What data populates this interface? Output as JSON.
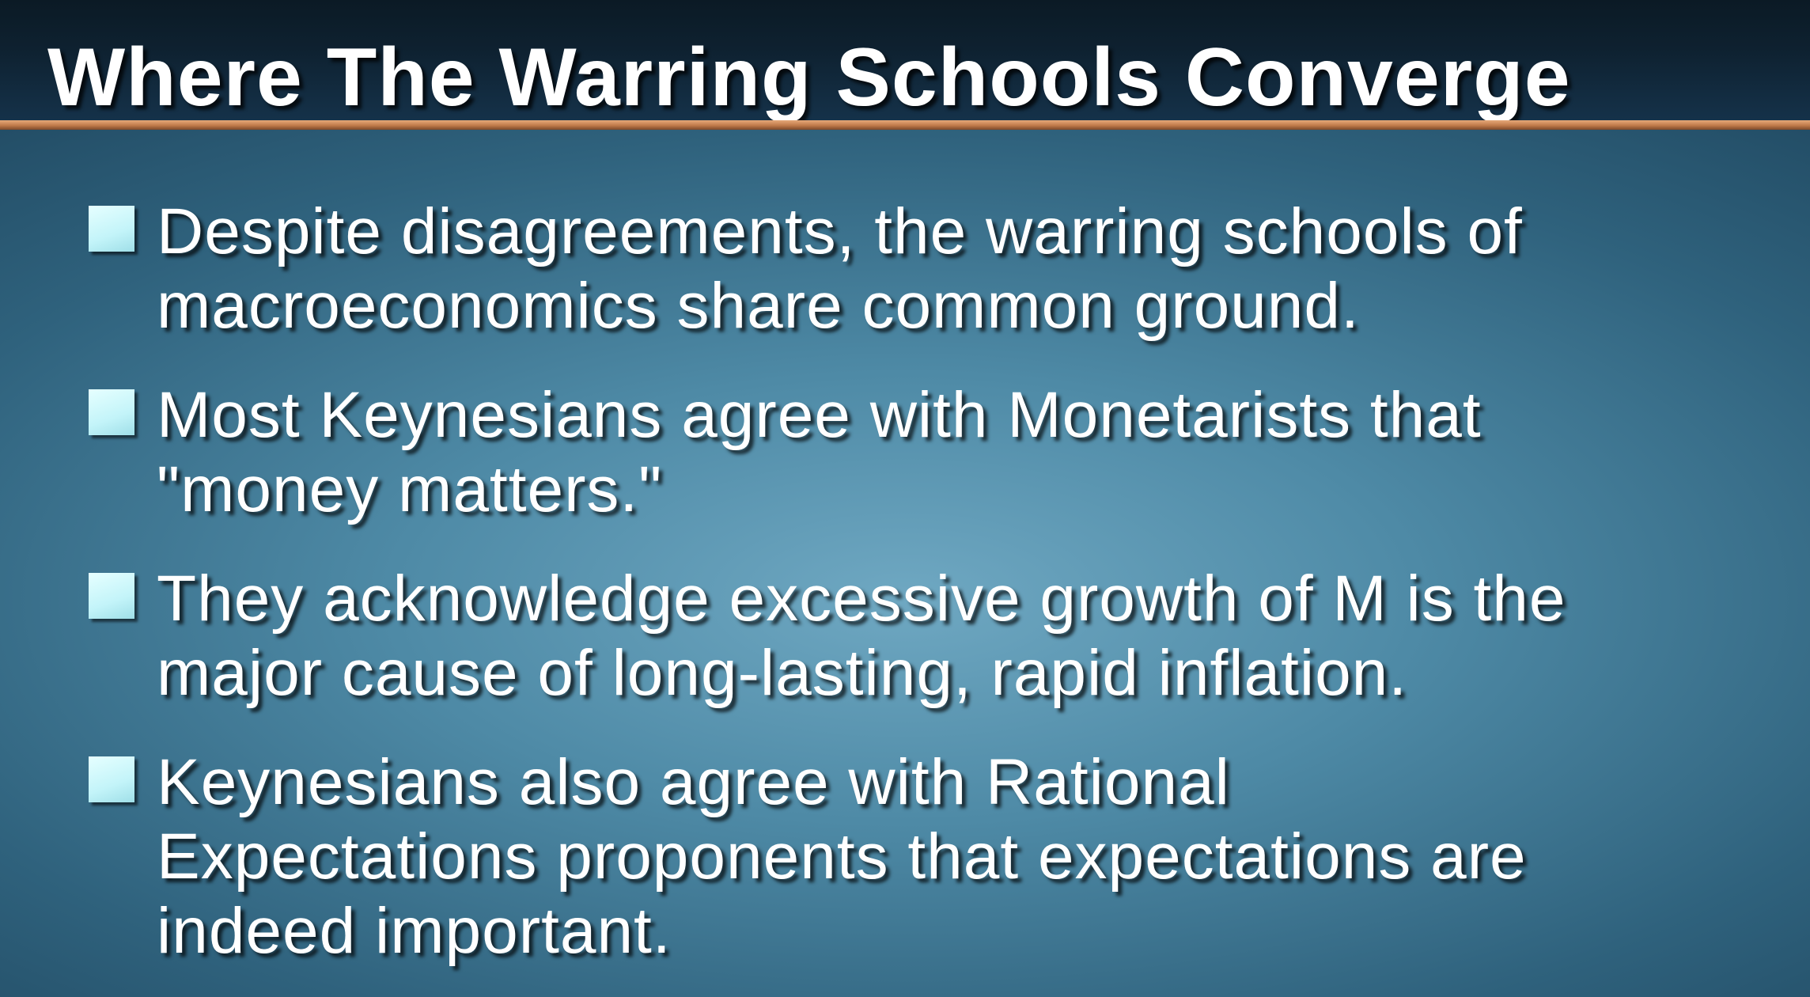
{
  "slide": {
    "title": "Where The Warring Schools Converge",
    "bullets": [
      {
        "lines": [
          "Despite disagreements, the warring schools of",
          "macroeconomics share common ground."
        ]
      },
      {
        "lines": [
          "Most Keynesians agree with Monetarists that",
          "\"money matters.\""
        ]
      },
      {
        "lines": [
          "They acknowledge excessive growth of M is the",
          "major cause of long-lasting, rapid inflation."
        ]
      },
      {
        "lines": [
          "Keynesians also agree with Rational",
          "Expectations proponents that expectations are",
          "indeed important."
        ]
      }
    ]
  },
  "colors": {
    "background_center": "#6fa8c2",
    "background_edge": "#183b52",
    "title_bar": "#0e2130",
    "rule": "#c07a4a",
    "bullet_square": "#c3f4f9",
    "text": "#ffffff"
  }
}
